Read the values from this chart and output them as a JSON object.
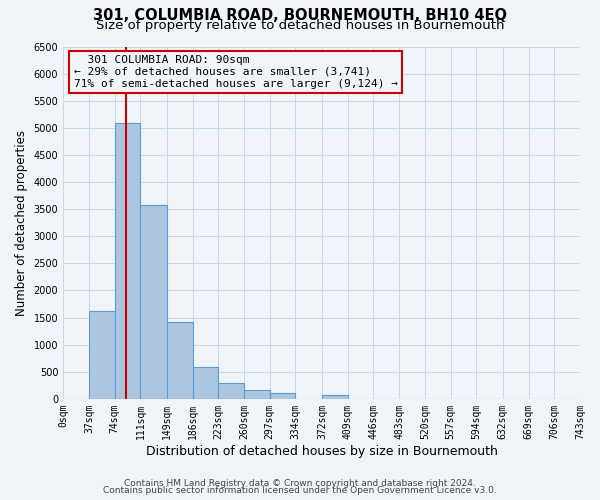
{
  "title": "301, COLUMBIA ROAD, BOURNEMOUTH, BH10 4EQ",
  "subtitle": "Size of property relative to detached houses in Bournemouth",
  "xlabel": "Distribution of detached houses by size in Bournemouth",
  "ylabel": "Number of detached properties",
  "footer_lines": [
    "Contains HM Land Registry data © Crown copyright and database right 2024.",
    "Contains public sector information licensed under the Open Government Licence v3.0."
  ],
  "bar_edges": [
    0,
    37,
    74,
    111,
    149,
    186,
    223,
    260,
    297,
    334,
    372,
    409,
    446,
    483,
    520,
    557,
    594,
    632,
    669,
    706,
    743
  ],
  "bar_heights": [
    0,
    1620,
    5080,
    3580,
    1420,
    580,
    300,
    155,
    100,
    0,
    65,
    0,
    0,
    0,
    0,
    0,
    0,
    0,
    0,
    0
  ],
  "bar_color": "#adc6df",
  "bar_edge_color": "#5b9bd5",
  "bar_linewidth": 0.8,
  "vline_x": 90,
  "vline_color": "#cc0000",
  "vline_linewidth": 1.5,
  "annotation_title": "301 COLUMBIA ROAD: 90sqm",
  "annotation_line1": "← 29% of detached houses are smaller (3,741)",
  "annotation_line2": "71% of semi-detached houses are larger (9,124) →",
  "annotation_box_color": "#cc0000",
  "xlim": [
    0,
    743
  ],
  "ylim": [
    0,
    6500
  ],
  "yticks": [
    0,
    500,
    1000,
    1500,
    2000,
    2500,
    3000,
    3500,
    4000,
    4500,
    5000,
    5500,
    6000,
    6500
  ],
  "xtick_labels": [
    "0sqm",
    "37sqm",
    "74sqm",
    "111sqm",
    "149sqm",
    "186sqm",
    "223sqm",
    "260sqm",
    "297sqm",
    "334sqm",
    "372sqm",
    "409sqm",
    "446sqm",
    "483sqm",
    "520sqm",
    "557sqm",
    "594sqm",
    "632sqm",
    "669sqm",
    "706sqm",
    "743sqm"
  ],
  "grid_color": "#c8d8e8",
  "background_color": "#f0f4f8",
  "title_fontsize": 10.5,
  "subtitle_fontsize": 9.5,
  "tick_fontsize": 7.0,
  "ylabel_fontsize": 8.5,
  "xlabel_fontsize": 9,
  "annotation_fontsize": 8,
  "footer_fontsize": 6.5
}
